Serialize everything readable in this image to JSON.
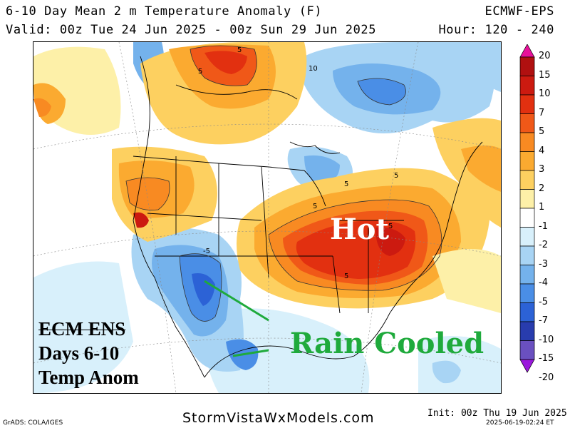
{
  "header": {
    "title": "6-10 Day Mean 2 m Temperature Anomaly (F)",
    "model": "ECMWF-EPS",
    "valid": "Valid: 00z Tue 24 Jun 2025 - 00z Sun 29 Jun 2025",
    "hours": "Hour: 120 - 240"
  },
  "colorbar": {
    "levels": [
      "20",
      "15",
      "10",
      "7",
      "5",
      "4",
      "3",
      "2",
      "1",
      "-1",
      "-2",
      "-3",
      "-4",
      "-5",
      "-7",
      "-10",
      "-15",
      "-20"
    ],
    "colors": [
      "#e8109a",
      "#b01010",
      "#cc1a10",
      "#e23010",
      "#f05818",
      "#f88a22",
      "#fbaa30",
      "#fdd060",
      "#fdf0a8",
      "#ffffff",
      "#d8f0fb",
      "#a8d4f4",
      "#74b2ec",
      "#4a8ee6",
      "#2c62d6",
      "#283cae",
      "#6a50c0",
      "#9a18dc"
    ]
  },
  "map_contour_labels": [
    "5",
    "5",
    "10",
    "5",
    "5",
    "5",
    "5",
    "-5",
    "5"
  ],
  "annotations": {
    "hot": "Hot",
    "rain_cooled": "Rain Cooled",
    "panel_line1": "ECM ENS",
    "panel_line2": "Days 6-10",
    "panel_line3": "Temp Anom"
  },
  "footer": {
    "site": "StormVistaWxModels.com",
    "grads": "GrADS: COLA/IGES",
    "init": "Init: 00z Thu 19 Jun 2025",
    "timestamp": "2025-06-19-02:24 ET"
  }
}
